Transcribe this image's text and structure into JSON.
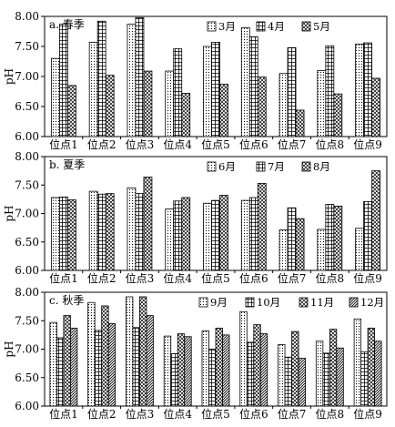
{
  "chart_data": [
    {
      "type": "bar",
      "title": "a. 春季",
      "ylabel": "pH",
      "ylim": [
        6.0,
        8.0
      ],
      "yticks": [
        "6.00",
        "6.50",
        "7.00",
        "7.50",
        "8.00"
      ],
      "categories": [
        "位点1",
        "位点2",
        "位点3",
        "位点4",
        "位点5",
        "位点6",
        "位点7",
        "位点8",
        "位点9"
      ],
      "legend_position": "top-right",
      "series": [
        {
          "name": "3月",
          "pattern": "dots",
          "values": [
            7.3,
            7.57,
            7.87,
            7.09,
            7.5,
            7.81,
            7.05,
            7.1,
            7.54
          ]
        },
        {
          "name": "4月",
          "pattern": "grid",
          "values": [
            7.87,
            7.92,
            7.98,
            7.46,
            7.57,
            7.66,
            7.48,
            7.51,
            7.56
          ]
        },
        {
          "name": "5月",
          "pattern": "cross",
          "values": [
            6.85,
            7.02,
            7.09,
            6.72,
            6.87,
            6.99,
            6.44,
            6.71,
            6.97
          ]
        }
      ]
    },
    {
      "type": "bar",
      "title": "b. 夏季",
      "ylabel": "pH",
      "ylim": [
        6.0,
        8.0
      ],
      "yticks": [
        "6.00",
        "6.50",
        "7.00",
        "7.50",
        "8.00"
      ],
      "categories": [
        "位点1",
        "位点2",
        "位点3",
        "位点4",
        "位点5",
        "位点6",
        "位点7",
        "位点8",
        "位点9"
      ],
      "legend_position": "top-right",
      "series": [
        {
          "name": "6月",
          "pattern": "dots",
          "values": [
            7.28,
            7.39,
            7.45,
            7.08,
            7.18,
            7.23,
            6.71,
            6.72,
            6.74
          ]
        },
        {
          "name": "7月",
          "pattern": "grid",
          "values": [
            7.29,
            7.34,
            7.35,
            7.22,
            7.23,
            7.28,
            7.1,
            7.16,
            7.21
          ]
        },
        {
          "name": "8月",
          "pattern": "cross",
          "values": [
            7.24,
            7.35,
            7.64,
            7.28,
            7.32,
            7.53,
            6.91,
            7.13,
            7.75
          ]
        }
      ]
    },
    {
      "type": "bar",
      "title": "c. 秋季",
      "ylabel": "pH",
      "ylim": [
        6.0,
        8.0
      ],
      "yticks": [
        "6.00",
        "6.50",
        "7.00",
        "7.50",
        "8.00"
      ],
      "categories": [
        "位点1",
        "位点2",
        "位点3",
        "位点4",
        "位点5",
        "位点6",
        "位点7",
        "位点8",
        "位点9"
      ],
      "legend_position": "top-right",
      "series": [
        {
          "name": "9月",
          "pattern": "dots",
          "values": [
            7.47,
            7.82,
            7.92,
            7.23,
            7.32,
            7.66,
            7.08,
            7.14,
            7.53
          ]
        },
        {
          "name": "10月",
          "pattern": "grid",
          "values": [
            7.2,
            7.33,
            7.38,
            6.92,
            7.0,
            7.12,
            6.86,
            6.93,
            6.95
          ]
        },
        {
          "name": "11月",
          "pattern": "cross",
          "values": [
            7.59,
            7.76,
            7.92,
            7.27,
            7.37,
            7.43,
            7.31,
            7.35,
            7.37
          ]
        },
        {
          "name": "12月",
          "pattern": "hatch",
          "values": [
            7.37,
            7.45,
            7.59,
            7.22,
            7.25,
            7.27,
            6.84,
            7.02,
            7.14
          ]
        }
      ]
    }
  ]
}
